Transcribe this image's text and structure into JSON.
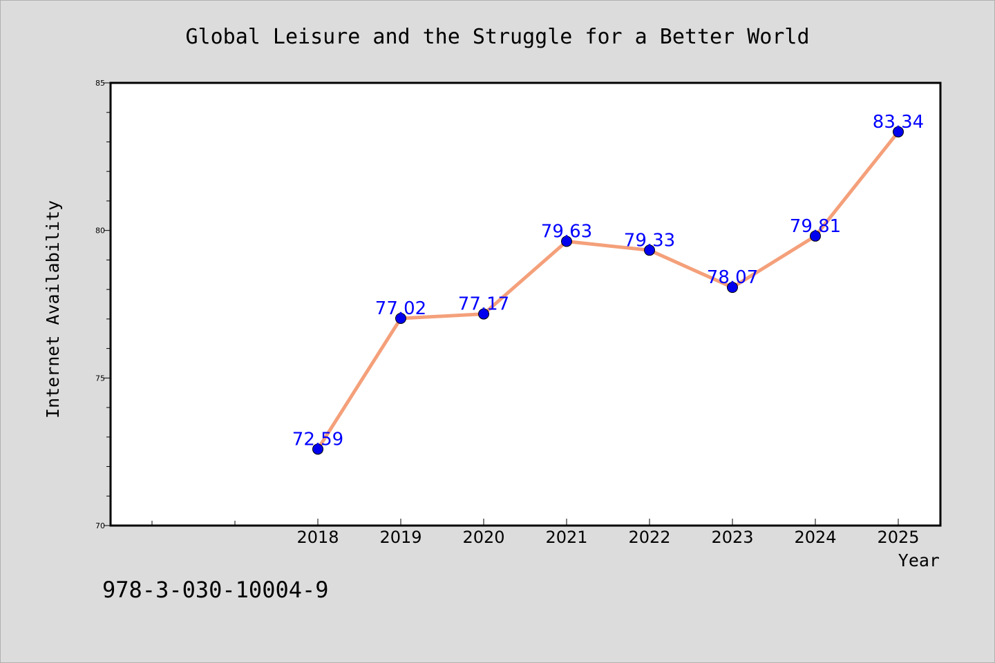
{
  "chart_data": {
    "type": "line",
    "title": "Global Leisure and the Struggle for a Better World",
    "xlabel": "Year",
    "ylabel": "Internet Availability",
    "categories": [
      "2018",
      "2019",
      "2020",
      "2021",
      "2022",
      "2023",
      "2024",
      "2025"
    ],
    "series": [
      {
        "values": [
          72.59,
          77.02,
          77.17,
          79.63,
          79.33,
          78.07,
          79.81,
          83.34
        ],
        "labels": [
          "72.59",
          "77.02",
          "77.17",
          "79.63",
          "79.33",
          "78.07",
          "79.81",
          "83.34"
        ]
      }
    ],
    "ylim": [
      70,
      85
    ],
    "yticks": [
      "70",
      "75",
      "80",
      "85"
    ],
    "grid": false,
    "colors": {
      "line": "#f4a07a",
      "marker": "#0000ee",
      "data_label": "#0000ff",
      "background": "#dcdcdc",
      "plot_background": "#ffffff"
    }
  },
  "footnote": "978-3-030-10004-9"
}
